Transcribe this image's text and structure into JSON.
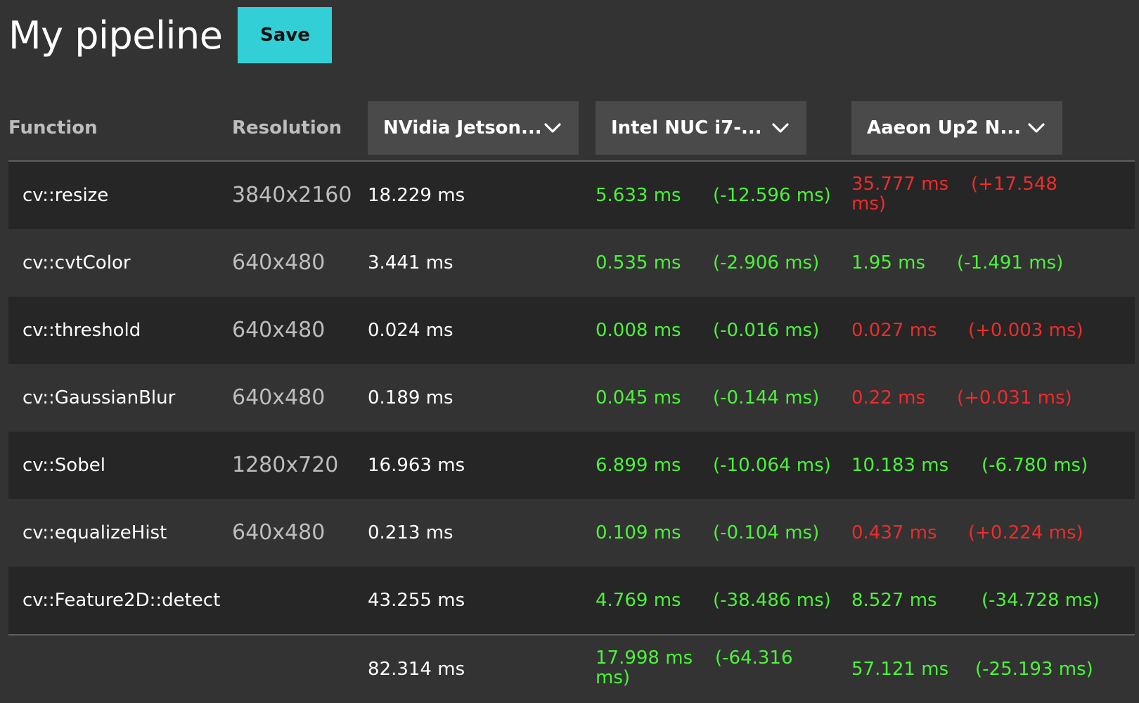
{
  "header": {
    "title": "My pipeline",
    "save_label": "Save"
  },
  "columns": {
    "function": "Function",
    "resolution": "Resolution",
    "devices": [
      {
        "label": "NVidia Jetson..."
      },
      {
        "label": "Intel NUC i7-..."
      },
      {
        "label": "Aaeon Up2 N..."
      }
    ]
  },
  "rows": [
    {
      "function": "cv::resize",
      "resolution": "3840x2160",
      "base": "18.229 ms",
      "d1_value": "5.633 ms",
      "d1_delta": "(-12.596 ms)",
      "d1_status": "good",
      "d2_value": "35.777 ms",
      "d2_delta": "(+17.548 ms)",
      "d2_status": "bad"
    },
    {
      "function": "cv::cvtColor",
      "resolution": "640x480",
      "base": "3.441 ms",
      "d1_value": "0.535 ms",
      "d1_delta": "(-2.906 ms)",
      "d1_status": "good",
      "d2_value": "1.95 ms",
      "d2_delta": "(-1.491 ms)",
      "d2_status": "good"
    },
    {
      "function": "cv::threshold",
      "resolution": "640x480",
      "base": "0.024 ms",
      "d1_value": "0.008 ms",
      "d1_delta": "(-0.016 ms)",
      "d1_status": "good",
      "d2_value": "0.027 ms",
      "d2_delta": "(+0.003 ms)",
      "d2_status": "bad"
    },
    {
      "function": "cv::GaussianBlur",
      "resolution": "640x480",
      "base": "0.189 ms",
      "d1_value": "0.045 ms",
      "d1_delta": "(-0.144 ms)",
      "d1_status": "good",
      "d2_value": "0.22 ms",
      "d2_delta": "(+0.031 ms)",
      "d2_status": "bad"
    },
    {
      "function": "cv::Sobel",
      "resolution": "1280x720",
      "base": "16.963 ms",
      "d1_value": "6.899 ms",
      "d1_delta": "(-10.064 ms)",
      "d1_status": "good",
      "d2_value": "10.183 ms",
      "d2_delta": "(-6.780 ms)",
      "d2_status": "good"
    },
    {
      "function": "cv::equalizeHist",
      "resolution": "640x480",
      "base": "0.213 ms",
      "d1_value": "0.109 ms",
      "d1_delta": "(-0.104 ms)",
      "d1_status": "good",
      "d2_value": "0.437 ms",
      "d2_delta": "(+0.224 ms)",
      "d2_status": "bad"
    },
    {
      "function": "cv::Feature2D::detect",
      "resolution": "",
      "base": "43.255 ms",
      "d1_value": "4.769 ms",
      "d1_delta": "(-38.486 ms)",
      "d1_status": "good",
      "d2_value": "8.527 ms",
      "d2_delta": "(-34.728 ms)",
      "d2_status": "good"
    }
  ],
  "totals": {
    "base": "82.314 ms",
    "d1_value": "17.998 ms",
    "d1_delta": "(-64.316 ms)",
    "d1_status": "good",
    "d2_value": "57.121 ms",
    "d2_delta": "(-25.193 ms)",
    "d2_status": "good"
  },
  "colors": {
    "good": "#4cf23a",
    "bad": "#ef2b2b",
    "accent": "#33cfd6"
  }
}
